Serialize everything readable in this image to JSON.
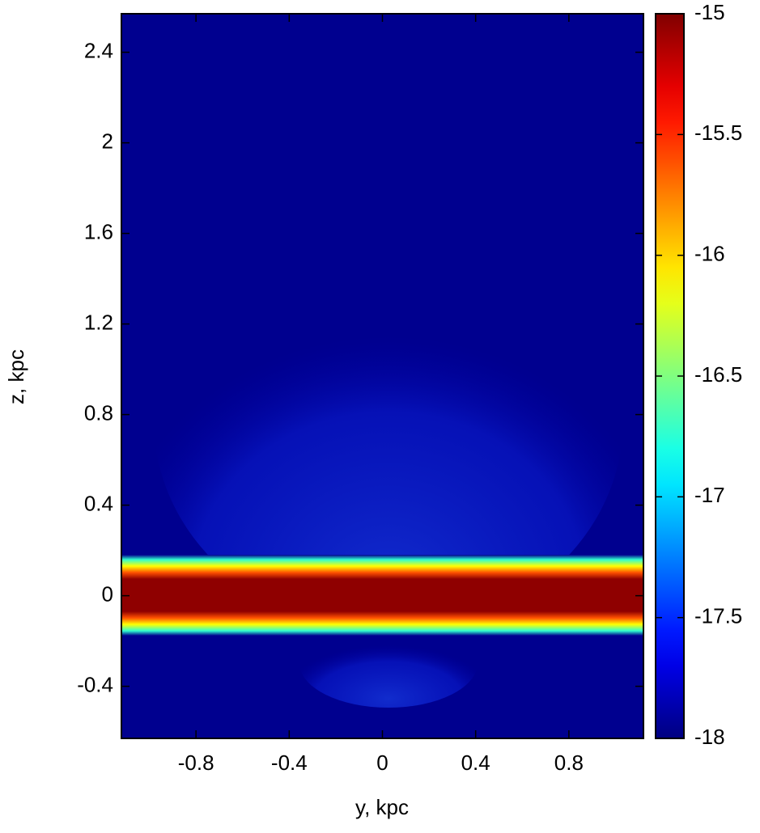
{
  "chart_data": {
    "type": "heatmap",
    "xlabel": "y, kpc",
    "ylabel": "z, kpc",
    "xlim": [
      -1.12,
      1.12
    ],
    "xticks": [
      -0.8,
      -0.4,
      0,
      0.4,
      0.8
    ],
    "ylim": [
      -0.63,
      2.57
    ],
    "yticks": [
      -0.4,
      0,
      0.4,
      0.8,
      1.2,
      1.6,
      2,
      2.4
    ],
    "colormap": "jet",
    "colorbar": {
      "lim": [
        -18,
        -15
      ],
      "ticks": [
        -18,
        -17.5,
        -17,
        -16.5,
        -16,
        -15.5,
        -15
      ]
    }
  }
}
